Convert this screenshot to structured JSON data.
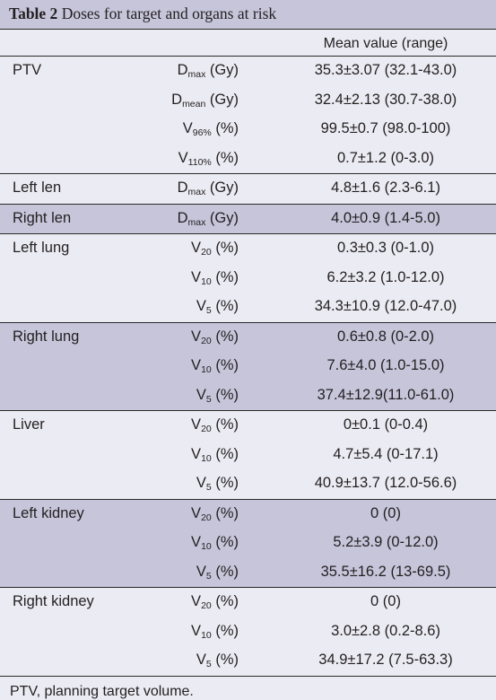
{
  "title": {
    "number": "Table 2",
    "text": " Doses for target and organs at risk"
  },
  "header": {
    "value_col": "Mean value (range)"
  },
  "groups": [
    {
      "organ": "PTV",
      "shaded": false,
      "rows": [
        {
          "p_main": "D",
          "p_sub": "max",
          "p_unit": " (Gy)",
          "value": "35.3±3.07 (32.1-43.0)"
        },
        {
          "p_main": "D",
          "p_sub": "mean",
          "p_unit": " (Gy)",
          "value": "32.4±2.13 (30.7-38.0)"
        },
        {
          "p_main": "V",
          "p_sub": "96%",
          "p_unit": " (%)",
          "value": "99.5±0.7 (98.0-100)"
        },
        {
          "p_main": "V",
          "p_sub": "110%",
          "p_unit": " (%)",
          "value": "0.7±1.2 (0-3.0)"
        }
      ]
    },
    {
      "organ": "Left len",
      "shaded": false,
      "rows": [
        {
          "p_main": "D",
          "p_sub": "max",
          "p_unit": " (Gy)",
          "value": "4.8±1.6 (2.3-6.1)"
        }
      ]
    },
    {
      "organ": "Right len",
      "shaded": true,
      "rows": [
        {
          "p_main": "D",
          "p_sub": "max",
          "p_unit": " (Gy)",
          "value": "4.0±0.9 (1.4-5.0)"
        }
      ]
    },
    {
      "organ": "Left lung",
      "shaded": false,
      "rows": [
        {
          "p_main": "V",
          "p_sub": "20",
          "p_unit": " (%)",
          "value": "0.3±0.3 (0-1.0)"
        },
        {
          "p_main": "V",
          "p_sub": "10",
          "p_unit": " (%)",
          "value": "6.2±3.2 (1.0-12.0)"
        },
        {
          "p_main": "V",
          "p_sub": "5",
          "p_unit": " (%)",
          "value": "34.3±10.9 (12.0-47.0)"
        }
      ]
    },
    {
      "organ": "Right lung",
      "shaded": true,
      "rows": [
        {
          "p_main": "V",
          "p_sub": "20",
          "p_unit": " (%)",
          "value": "0.6±0.8 (0-2.0)"
        },
        {
          "p_main": "V",
          "p_sub": "10",
          "p_unit": " (%)",
          "value": "7.6±4.0 (1.0-15.0)"
        },
        {
          "p_main": "V",
          "p_sub": "5",
          "p_unit": " (%)",
          "value": "37.4±12.9(11.0-61.0)"
        }
      ]
    },
    {
      "organ": "Liver",
      "shaded": false,
      "rows": [
        {
          "p_main": "V",
          "p_sub": "20",
          "p_unit": " (%)",
          "value": "0±0.1 (0-0.4)"
        },
        {
          "p_main": "V",
          "p_sub": "10",
          "p_unit": " (%)",
          "value": "4.7±5.4 (0-17.1)"
        },
        {
          "p_main": "V",
          "p_sub": "5",
          "p_unit": " (%)",
          "value": "40.9±13.7 (12.0-56.6)"
        }
      ]
    },
    {
      "organ": "Left kidney",
      "shaded": true,
      "rows": [
        {
          "p_main": "V",
          "p_sub": "20",
          "p_unit": " (%)",
          "value": "0 (0)"
        },
        {
          "p_main": "V",
          "p_sub": "10",
          "p_unit": " (%)",
          "value": "5.2±3.9 (0-12.0)"
        },
        {
          "p_main": "V",
          "p_sub": "5",
          "p_unit": " (%)",
          "value": "35.5±16.2 (13-69.5)"
        }
      ]
    },
    {
      "organ": "Right kidney",
      "shaded": false,
      "rows": [
        {
          "p_main": "V",
          "p_sub": "20",
          "p_unit": " (%)",
          "value": "0 (0)"
        },
        {
          "p_main": "V",
          "p_sub": "10",
          "p_unit": " (%)",
          "value": "3.0±2.8 (0.2-8.6)"
        },
        {
          "p_main": "V",
          "p_sub": "5",
          "p_unit": " (%)",
          "value": "34.9±17.2 (7.5-63.3)"
        }
      ]
    }
  ],
  "footnote": "PTV, planning target volume.",
  "colors": {
    "shaded": "#c6c5da",
    "light": "#ebebf3",
    "rule": "#2a2a2a"
  }
}
